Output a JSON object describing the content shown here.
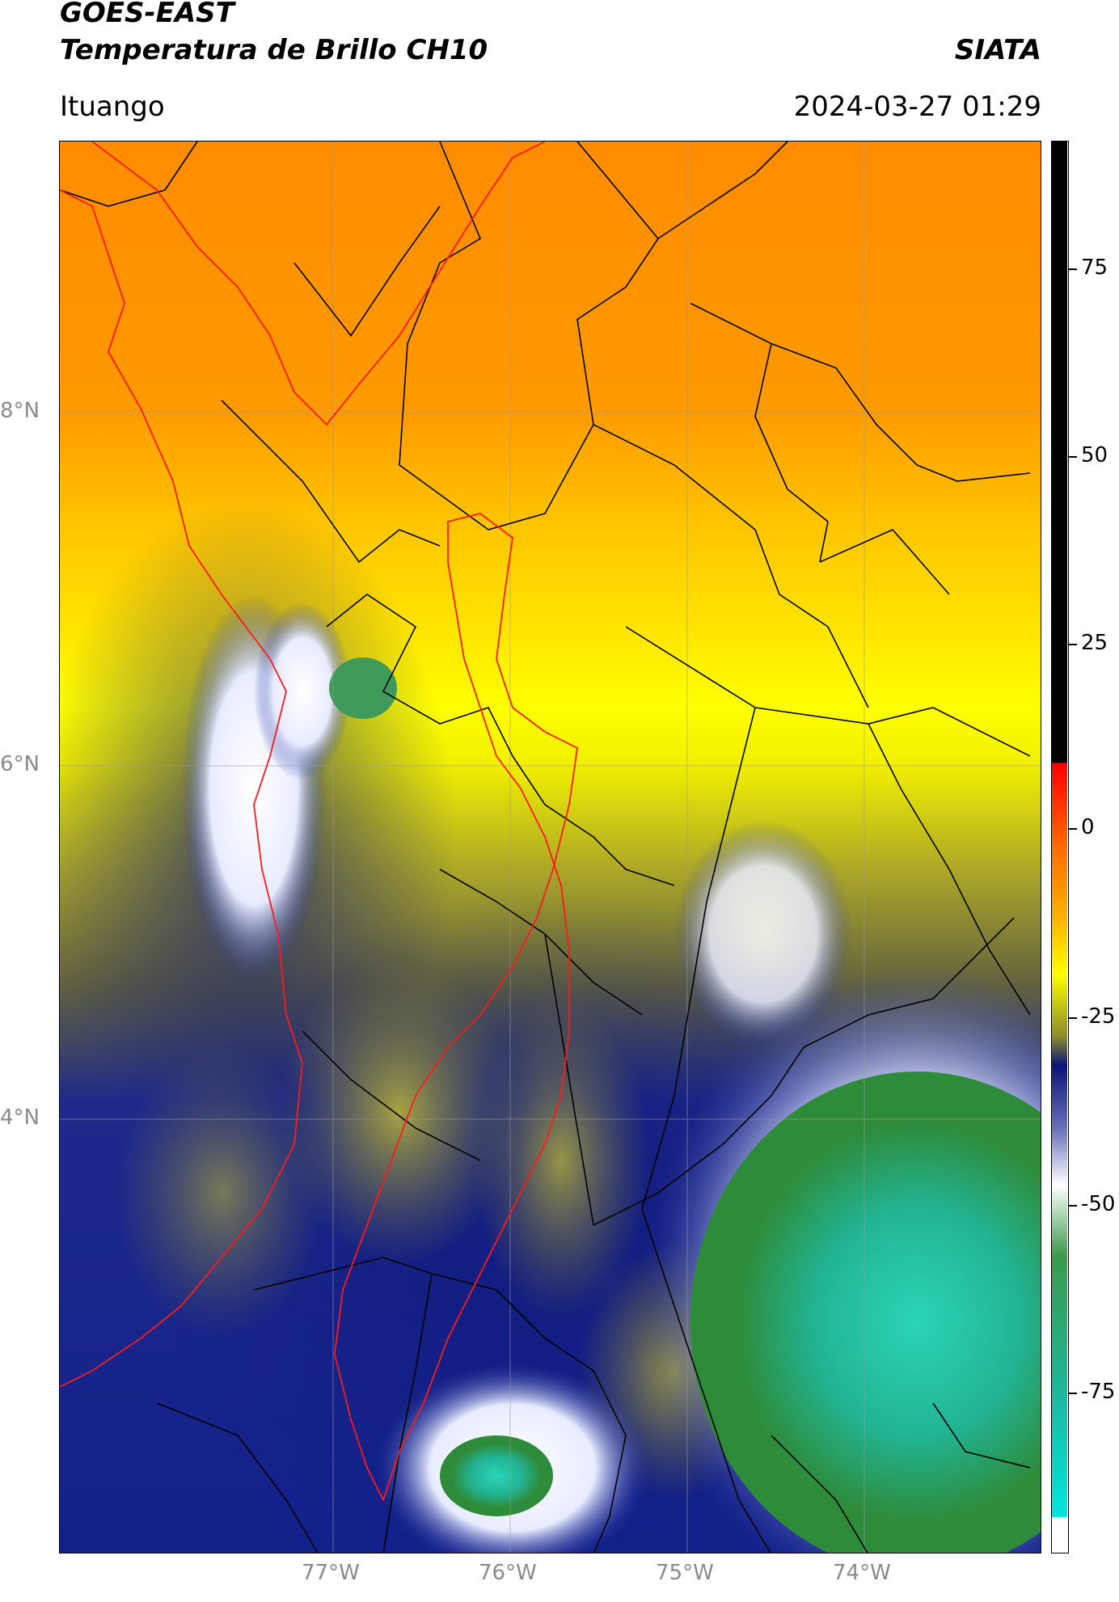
{
  "header": {
    "satellite": "GOES-EAST",
    "product": "Temperatura de Brillo CH10",
    "organization": "SIATA",
    "region": "Ituango",
    "timestamp": "2024-03-27 01:29"
  },
  "map": {
    "lat_labels": [
      "8°N",
      "6°N",
      "4°N"
    ],
    "lon_labels": [
      "77°W",
      "76°W",
      "75°W",
      "74°W"
    ],
    "legend_colors": {
      "warm_orange": "#ff8c00",
      "yellow": "#ffff00",
      "olive": "#8c8c1e",
      "navy": "#0a1478",
      "white": "#ffffff",
      "green": "#2e8b3a",
      "teal": "#1ec8b4",
      "boundary_red": "#ff0000",
      "boundary_black": "#000000"
    }
  },
  "colorbar": {
    "ticks": [
      "75",
      "50",
      "25",
      "0",
      "-25",
      "-50",
      "-75"
    ]
  }
}
